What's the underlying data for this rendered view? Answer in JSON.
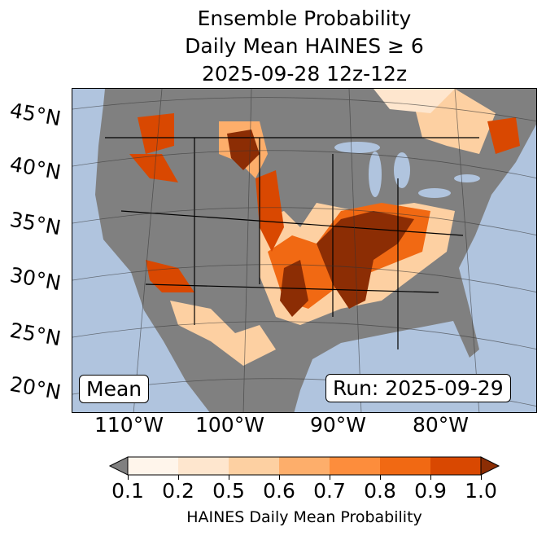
{
  "title": {
    "line1": "Ensemble Probability",
    "line2": "Daily Mean HAINES ≥ 6",
    "line3": "2025-09-28 12z-12z"
  },
  "map": {
    "lat_labels": [
      "45°N",
      "40°N",
      "35°N",
      "30°N",
      "25°N",
      "20°N"
    ],
    "lon_labels": [
      "110°W",
      "100°W",
      "90°W",
      "80°W"
    ],
    "mean_label": "Mean",
    "run_label": "Run: 2025-09-29",
    "colors": {
      "ocean": "#b0c4de",
      "land": "#808080"
    }
  },
  "colorbar": {
    "ticks": [
      "0.1",
      "0.2",
      "0.5",
      "0.6",
      "0.7",
      "0.8",
      "0.9",
      "1.0"
    ],
    "colors": [
      "#fff5eb",
      "#fee6ce",
      "#fdd0a2",
      "#fdae6b",
      "#fd8d3c",
      "#f16913",
      "#d94801"
    ],
    "under_color": "#808080",
    "over_color": "#8c2d04",
    "label": "HAINES Daily Mean Probability"
  }
}
